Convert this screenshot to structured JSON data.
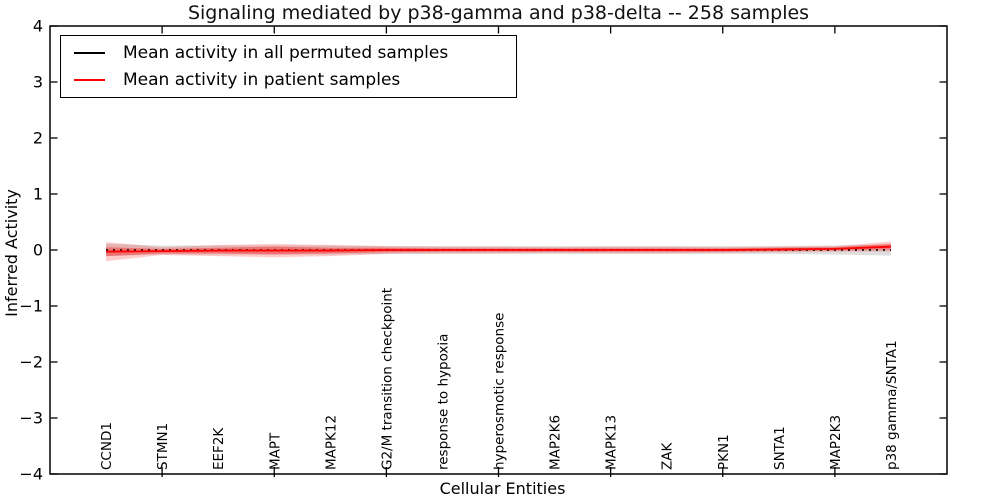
{
  "title": "Signaling mediated by p38-gamma and p38-delta -- 258 samples",
  "axes": {
    "xlabel": "Cellular Entities",
    "ylabel": "Inferred Activity"
  },
  "legend": {
    "entries": [
      {
        "label": "Mean activity in all permuted samples",
        "color": "#000000"
      },
      {
        "label": "Mean activity in patient samples",
        "color": "#ff0000"
      }
    ]
  },
  "colors": {
    "background": "#ffffff",
    "axis": "#000000",
    "permuted_line": "#000000",
    "patient_line": "#ff0000",
    "permuted_band": "#999999",
    "patient_band": "#ff0000"
  },
  "chart_data": {
    "type": "line",
    "title": "Signaling mediated by p38-gamma and p38-delta -- 258 samples",
    "xlabel": "Cellular Entities",
    "ylabel": "Inferred Activity",
    "categories": [
      "CCND1",
      "STMN1",
      "EEF2K",
      "MAPT",
      "MAPK12",
      "G2/M transition checkpoint",
      "response to hypoxia",
      "hyperosmotic response",
      "MAP2K6",
      "MAPK13",
      "ZAK",
      "PKN1",
      "SNTA1",
      "MAP2K3",
      "p38 gamma/SNTA1"
    ],
    "xlim": [
      -1,
      15
    ],
    "ylim": [
      -4,
      4
    ],
    "yticks": [
      4,
      3,
      2,
      1,
      0,
      -1,
      -2,
      -3,
      -4
    ],
    "ytick_labels": [
      "4",
      "3",
      "2",
      "1",
      "0",
      "−1",
      "−2",
      "−3",
      "−4"
    ],
    "xtick_positions": [
      1,
      3,
      5,
      7,
      9,
      11,
      13
    ],
    "grid": false,
    "legend_position": "upper left",
    "series": [
      {
        "name": "Mean activity in all permuted samples",
        "color": "#000000",
        "line_style": "dotted",
        "values": [
          0,
          0,
          0,
          0,
          0,
          0,
          0,
          0,
          0,
          0,
          0,
          0,
          0,
          0,
          0
        ],
        "band_halfwidth": [
          0.11,
          0.08,
          0.08,
          0.08,
          0.08,
          0.07,
          0.07,
          0.07,
          0.07,
          0.07,
          0.07,
          0.07,
          0.07,
          0.08,
          0.1
        ],
        "band_color": "#999999",
        "band_opacity": 0.32
      },
      {
        "name": "Mean activity in patient samples",
        "color": "#ff0000",
        "line_style": "solid",
        "values": [
          -0.03,
          -0.02,
          -0.01,
          -0.01,
          -0.01,
          0,
          0,
          0,
          0,
          0,
          0,
          0,
          0.01,
          0.02,
          0.06
        ],
        "band_outer_halfwidth": [
          0.17,
          0.07,
          0.1,
          0.12,
          0.1,
          0.07,
          0.06,
          0.06,
          0.05,
          0.06,
          0.06,
          0.05,
          0.05,
          0.05,
          0.09
        ],
        "band_inner_halfwidth": [
          0.08,
          0.04,
          0.05,
          0.07,
          0.05,
          0.04,
          0.03,
          0.03,
          0.03,
          0.03,
          0.03,
          0.03,
          0.03,
          0.03,
          0.05
        ],
        "band_color": "#ff0000",
        "band_opacity_outer": 0.2,
        "band_opacity_inner": 0.34
      }
    ]
  }
}
